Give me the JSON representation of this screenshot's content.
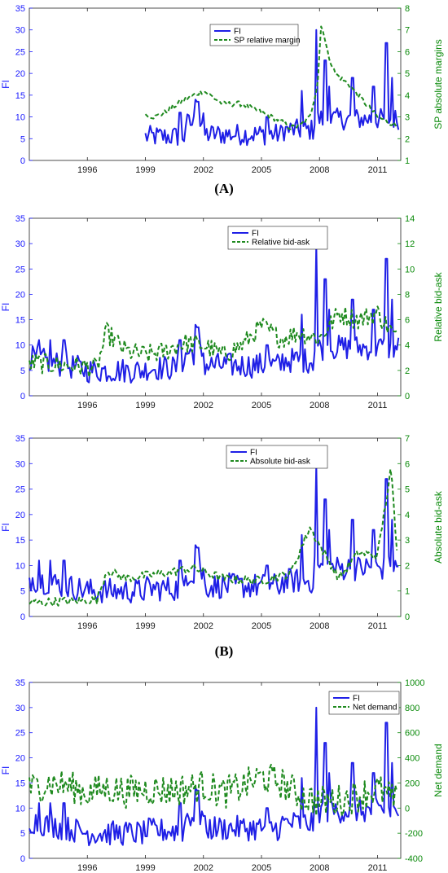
{
  "captions": {
    "a": "(A)",
    "b": "(B)"
  },
  "x_ticks": [
    "1996",
    "1999",
    "2002",
    "2005",
    "2008",
    "2011"
  ],
  "colors": {
    "fi": "#1f1fe6",
    "other": "#1f8a1f"
  },
  "chart_data": [
    {
      "type": "line",
      "left_axis": {
        "label": "FI",
        "ylim": [
          0,
          35
        ],
        "ticks": [
          "0",
          "5",
          "10",
          "15",
          "20",
          "25",
          "30",
          "35"
        ]
      },
      "right_axis": {
        "label": "SP absolute margins",
        "ylim": [
          1,
          8
        ],
        "ticks": [
          "1",
          "2",
          "3",
          "4",
          "5",
          "6",
          "7",
          "8"
        ]
      },
      "xlim": [
        1993,
        2012.2
      ],
      "legend": {
        "placement": "top-center",
        "labels": [
          "FI",
          "SP relative margin"
        ]
      },
      "series": [
        {
          "name": "FI",
          "axis": "left",
          "style": "solid",
          "x_range": [
            1999,
            2012.1
          ]
        },
        {
          "name": "SP relative margin",
          "axis": "right",
          "style": "dashed",
          "x": [
            1999.0,
            1999.5,
            2000.0,
            2000.5,
            2001.0,
            2001.5,
            2002.0,
            2002.5,
            2003.0,
            2004.0,
            2005.0,
            2005.5,
            2006.0,
            2006.5,
            2007.0,
            2007.5,
            2007.9,
            2008.1,
            2008.4,
            2008.8,
            2009.5,
            2010.0,
            2010.5,
            2011.0,
            2011.5,
            2012.0
          ],
          "y": [
            3.1,
            3.0,
            3.2,
            3.5,
            3.8,
            4.0,
            4.2,
            3.9,
            3.6,
            3.6,
            3.2,
            3.0,
            2.8,
            2.5,
            2.6,
            3.0,
            4.5,
            7.4,
            6.0,
            5.0,
            4.5,
            4.0,
            3.5,
            3.0,
            2.8,
            2.6
          ]
        }
      ]
    },
    {
      "type": "line",
      "left_axis": {
        "label": "FI",
        "ylim": [
          0,
          35
        ],
        "ticks": [
          "0",
          "5",
          "10",
          "15",
          "20",
          "25",
          "30",
          "35"
        ]
      },
      "right_axis": {
        "label": "Relative bid-ask",
        "ylim": [
          0,
          14
        ],
        "ticks": [
          "0",
          "2",
          "4",
          "6",
          "8",
          "10",
          "12",
          "14"
        ]
      },
      "xlim": [
        1993,
        2012.2
      ],
      "legend": {
        "placement": "top-right",
        "labels": [
          "FI",
          "Relative bid-ask"
        ]
      },
      "series": [
        {
          "name": "FI",
          "axis": "left",
          "style": "solid",
          "x_range": [
            1993,
            2012.1
          ]
        },
        {
          "name": "Relative bid-ask",
          "axis": "right",
          "style": "dashed",
          "x": [
            1993,
            1995,
            1996.5,
            1997,
            1998,
            1999,
            2000,
            2001,
            2002,
            2003,
            2004,
            2005,
            2006,
            2007,
            2008,
            2009,
            2010,
            2011,
            2012
          ],
          "y": [
            2.6,
            2.4,
            2.2,
            5.0,
            3.5,
            3.2,
            3.5,
            4.2,
            4.0,
            3.2,
            4.0,
            5.5,
            4.5,
            5.0,
            4.5,
            6.5,
            6.0,
            6.5,
            4.5
          ]
        }
      ]
    },
    {
      "type": "line",
      "left_axis": {
        "label": "FI",
        "ylim": [
          0,
          35
        ],
        "ticks": [
          "0",
          "5",
          "10",
          "15",
          "20",
          "25",
          "30",
          "35"
        ]
      },
      "right_axis": {
        "label": "Absolute bid-ask",
        "ylim": [
          0,
          7
        ],
        "ticks": [
          "0",
          "1",
          "2",
          "3",
          "4",
          "5",
          "6",
          "7"
        ]
      },
      "xlim": [
        1993,
        2012.2
      ],
      "legend": {
        "placement": "top-center",
        "labels": [
          "FI",
          "Absolute bid-ask"
        ]
      },
      "series": [
        {
          "name": "FI",
          "axis": "left",
          "style": "solid",
          "x_range": [
            1993,
            2012.1
          ]
        },
        {
          "name": "Absolute bid-ask",
          "axis": "right",
          "style": "dashed",
          "x": [
            1993,
            1995,
            1996.5,
            1997,
            1998,
            2000,
            2001.5,
            2003,
            2005,
            2006.5,
            2007.5,
            2008,
            2009,
            2010,
            2011,
            2011.7,
            2012
          ],
          "y": [
            0.55,
            0.6,
            0.65,
            1.8,
            1.5,
            1.7,
            1.9,
            1.5,
            1.4,
            1.7,
            3.5,
            2.8,
            1.5,
            2.5,
            2.4,
            5.8,
            2.5
          ]
        }
      ]
    },
    {
      "type": "line",
      "left_axis": {
        "label": "FI",
        "ylim": [
          0,
          35
        ],
        "ticks": [
          "0",
          "5",
          "10",
          "15",
          "20",
          "25",
          "30",
          "35"
        ]
      },
      "right_axis": {
        "label": "Net demand",
        "ylim": [
          -400,
          1000
        ],
        "ticks": [
          "-400",
          "-200",
          "0",
          "200",
          "400",
          "600",
          "800",
          "1000"
        ]
      },
      "xlim": [
        1993,
        2012.2
      ],
      "legend": {
        "placement": "top-right",
        "labels": [
          "FI",
          "Net demand"
        ]
      },
      "series": [
        {
          "name": "FI",
          "axis": "left",
          "style": "solid",
          "x_range": [
            1993,
            2012.1
          ]
        },
        {
          "name": "Net demand",
          "axis": "right",
          "style": "dashed",
          "x": [
            1993,
            1994,
            1995,
            1996,
            1997,
            1998,
            1999,
            2000,
            2001,
            2002,
            2003,
            2004,
            2005,
            2006,
            2007,
            2008,
            2009,
            2010,
            2011,
            2012
          ],
          "y": [
            150,
            200,
            180,
            120,
            160,
            130,
            150,
            140,
            150,
            180,
            120,
            170,
            250,
            200,
            100,
            50,
            60,
            100,
            150,
            50
          ]
        }
      ]
    }
  ]
}
